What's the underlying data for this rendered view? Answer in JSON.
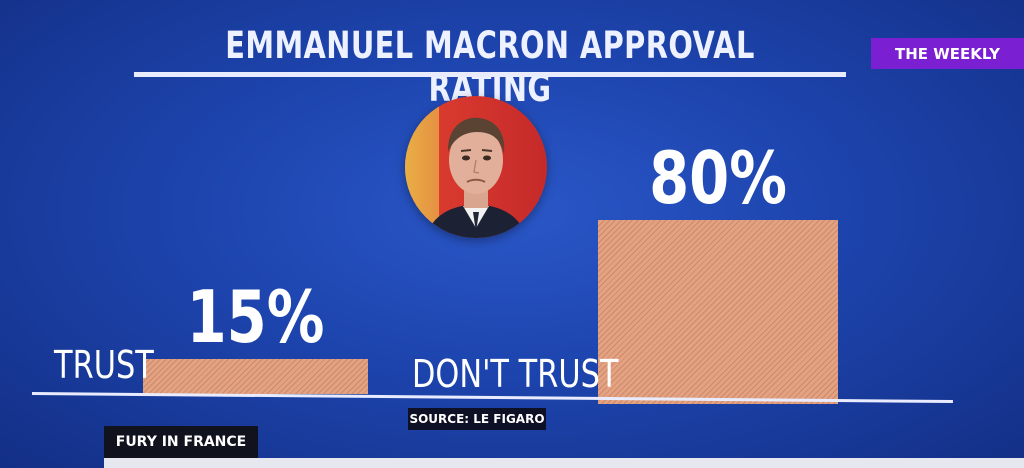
{
  "header": {
    "title": "EMMANUEL MACRON APPROVAL RATING",
    "badge": "THE WEEKLY"
  },
  "colors": {
    "background": "#1d44ad",
    "bar_fill": "#e3a383",
    "badge": "#7b1fd3"
  },
  "photo": {
    "subject": "portrait-photo"
  },
  "chart_data": {
    "type": "bar",
    "title": "EMMANUEL MACRON APPROVAL RATING",
    "categories": [
      "TRUST",
      "DON'T TRUST"
    ],
    "values": [
      15,
      80
    ],
    "value_labels": [
      "15%",
      "80%"
    ],
    "unit": "%",
    "ylim": [
      0,
      100
    ],
    "grid": false,
    "legend": "none"
  },
  "footer": {
    "source": "SOURCE: LE FIGARO",
    "lower_third": "FURY IN FRANCE"
  }
}
